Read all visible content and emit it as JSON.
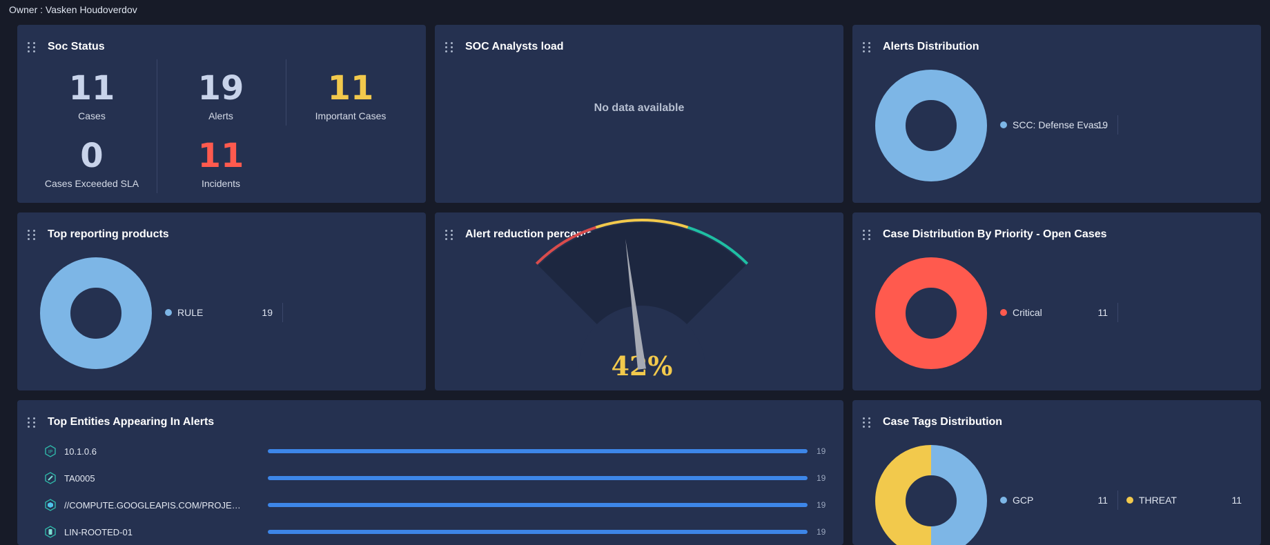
{
  "owner": "Owner : Vasken Houdoverdov",
  "soc_status": {
    "title": "Soc Status",
    "cases": {
      "value": "11",
      "label": "Cases"
    },
    "alerts": {
      "value": "19",
      "label": "Alerts"
    },
    "important_cases": {
      "value": "11",
      "label": "Important Cases"
    },
    "cases_exceeded_sla": {
      "value": "0",
      "label": "Cases Exceeded SLA"
    },
    "incidents": {
      "value": "11",
      "label": "Incidents"
    }
  },
  "analysts_load": {
    "title": "SOC Analysts load",
    "empty_text": "No data available"
  },
  "alerts_distribution": {
    "title": "Alerts Distribution",
    "legend": [
      {
        "label": "SCC: Defense Evas...",
        "value": "19",
        "color": "#7db6e6"
      }
    ]
  },
  "top_products": {
    "title": "Top reporting products",
    "legend": [
      {
        "label": "RULE",
        "value": "19",
        "color": "#7db6e6"
      }
    ]
  },
  "alert_reduction": {
    "title": "Alert reduction percentage",
    "value_text": "42%",
    "value": 42,
    "colors": {
      "low": "#d94c4c",
      "mid": "#f2c94c",
      "high": "#1fbfa3"
    }
  },
  "case_priority": {
    "title": "Case Distribution By Priority - Open Cases",
    "legend": [
      {
        "label": "Critical",
        "value": "11",
        "color": "#ff5a4e"
      }
    ]
  },
  "top_entities": {
    "title": "Top Entities Appearing In Alerts",
    "rows": [
      {
        "label": "10.1.0.6",
        "count": "19",
        "fraction": 1.0,
        "icon": "ip-icon"
      },
      {
        "label": "TA0005",
        "count": "19",
        "fraction": 1.0,
        "icon": "pen-icon"
      },
      {
        "label": "//COMPUTE.GOOGLEAPIS.COM/PROJECT...",
        "count": "19",
        "fraction": 1.0,
        "icon": "resource-icon"
      },
      {
        "label": "LIN-ROOTED-01",
        "count": "19",
        "fraction": 1.0,
        "icon": "host-icon"
      }
    ]
  },
  "case_tags": {
    "title": "Case Tags Distribution",
    "legend": [
      {
        "label": "GCP",
        "value": "11",
        "color": "#7db6e6"
      },
      {
        "label": "THREAT",
        "value": "11",
        "color": "#f2c94c"
      }
    ]
  }
}
